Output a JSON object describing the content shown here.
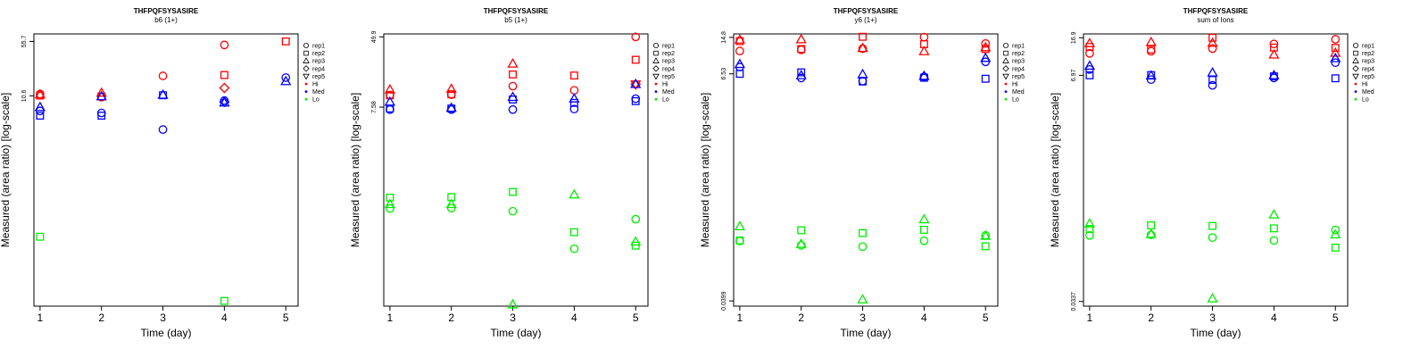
{
  "page": {
    "x_axis_label": "Time (day)",
    "y_axis_label": "Measured (area ratio) [log-scale]"
  },
  "legend": {
    "replicates": [
      {
        "label": "rep1",
        "shape": "circle"
      },
      {
        "label": "rep2",
        "shape": "square"
      },
      {
        "label": "rep3",
        "shape": "triangle-up"
      },
      {
        "label": "rep4",
        "shape": "diamond"
      },
      {
        "label": "rep5",
        "shape": "triangle-down"
      }
    ],
    "groups": [
      {
        "label": "Hi",
        "color": "#ff0000"
      },
      {
        "label": "Med",
        "color": "#0000ff"
      },
      {
        "label": "Lo",
        "color": "#00ee00"
      }
    ]
  },
  "chart_data": [
    {
      "type": "scatter",
      "title": "THFPQFSYSASIRE",
      "subtitle": "b6 (1+)",
      "xlabel": "Time (day)",
      "ylabel": "Measured (area ratio) [log-scale]",
      "log_y": true,
      "x": [
        1,
        2,
        3,
        4,
        5
      ],
      "xlim": [
        0.9,
        5.2
      ],
      "ylim": [
        0.0175,
        70
      ],
      "y_ticks": [
        {
          "value": 10.6,
          "label": "10.6"
        },
        {
          "value": 55.7,
          "label": "55.7"
        }
      ],
      "series": [
        {
          "group": "Hi",
          "rep": "rep1",
          "x": [
            1,
            2,
            3,
            4
          ],
          "y": [
            11.2,
            10.2,
            19.5,
            50
          ]
        },
        {
          "group": "Hi",
          "rep": "rep2",
          "x": [
            1,
            2,
            4,
            5
          ],
          "y": [
            10.7,
            10.4,
            20,
            55.7
          ]
        },
        {
          "group": "Hi",
          "rep": "rep3",
          "x": [
            1,
            2
          ],
          "y": [
            11.0,
            11.6
          ]
        },
        {
          "group": "Hi",
          "rep": "rep4",
          "x": [
            4
          ],
          "y": [
            13.5
          ]
        },
        {
          "group": "Med",
          "rep": "rep1",
          "x": [
            1,
            2,
            3,
            4,
            5
          ],
          "y": [
            6.7,
            6.3,
            3.8,
            9.2,
            18.5
          ]
        },
        {
          "group": "Med",
          "rep": "rep2",
          "x": [
            1,
            2,
            3
          ],
          "y": [
            5.8,
            5.8,
            10.8
          ]
        },
        {
          "group": "Med",
          "rep": "rep3",
          "x": [
            1,
            2,
            3,
            4,
            5
          ],
          "y": [
            7.5,
            10.4,
            10.9,
            8.6,
            16.5
          ]
        },
        {
          "group": "Med",
          "rep": "rep4",
          "x": [
            4
          ],
          "y": [
            8.8
          ]
        },
        {
          "group": "Lo",
          "rep": "rep2",
          "x": [
            1,
            4
          ],
          "y": [
            0.145,
            0.0205
          ]
        }
      ]
    },
    {
      "type": "scatter",
      "title": "THFPQFSYSASIRE",
      "subtitle": "b5 (1+)",
      "xlabel": "Time (day)",
      "ylabel": "Measured (area ratio) [log-scale]",
      "log_y": true,
      "x": [
        1,
        2,
        3,
        4,
        5
      ],
      "xlim": [
        0.9,
        5.2
      ],
      "ylim": [
        0.0365,
        54
      ],
      "y_ticks": [
        {
          "value": 7.58,
          "label": "7.58"
        },
        {
          "value": 49.9,
          "label": "49.9"
        }
      ],
      "series": [
        {
          "group": "Hi",
          "rep": "rep1",
          "x": [
            1,
            2,
            3,
            4,
            5
          ],
          "y": [
            10.5,
            10.6,
            13.3,
            11.9,
            49.9
          ]
        },
        {
          "group": "Hi",
          "rep": "rep2",
          "x": [
            1,
            2,
            3,
            4,
            5
          ],
          "y": [
            10.4,
            10.7,
            18.2,
            17.7,
            27
          ]
        },
        {
          "group": "Hi",
          "rep": "rep3",
          "x": [
            1,
            2,
            3
          ],
          "y": [
            12.1,
            12.3,
            24.2
          ]
        },
        {
          "group": "Hi",
          "rep": "rep4",
          "x": [
            5
          ],
          "y": [
            14
          ]
        },
        {
          "group": "Hi",
          "rep": "rep5",
          "x": [
            5
          ],
          "y": [
            14
          ]
        },
        {
          "group": "Med",
          "rep": "rep1",
          "x": [
            1,
            2,
            3,
            4,
            5
          ],
          "y": [
            7.1,
            7.1,
            7.1,
            7.2,
            9.5
          ]
        },
        {
          "group": "Med",
          "rep": "rep2",
          "x": [
            1,
            2,
            3,
            4,
            5
          ],
          "y": [
            7.3,
            7.3,
            9.3,
            8.5,
            8.9
          ]
        },
        {
          "group": "Med",
          "rep": "rep3",
          "x": [
            1,
            2,
            3,
            4,
            5
          ],
          "y": [
            8.7,
            7.4,
            9.9,
            9.5,
            14
          ]
        },
        {
          "group": "Lo",
          "rep": "rep1",
          "x": [
            1,
            2,
            3,
            4,
            5
          ],
          "y": [
            0.5,
            0.505,
            0.465,
            0.17,
            0.375
          ]
        },
        {
          "group": "Lo",
          "rep": "rep2",
          "x": [
            1,
            2,
            3,
            4,
            5
          ],
          "y": [
            0.67,
            0.68,
            0.78,
            0.265,
            0.185
          ]
        },
        {
          "group": "Lo",
          "rep": "rep3",
          "x": [
            1,
            2,
            3,
            4,
            5
          ],
          "y": [
            0.56,
            0.56,
            0.038,
            0.725,
            0.205
          ]
        }
      ]
    },
    {
      "type": "scatter",
      "title": "THFPQFSYSASIRE",
      "subtitle": "y6 (1+)",
      "xlabel": "Time (day)",
      "ylabel": "Measured (area ratio) [log-scale]",
      "log_y": true,
      "x": [
        1,
        2,
        3,
        4,
        5
      ],
      "xlim": [
        0.9,
        5.2
      ],
      "ylim": [
        0.0355,
        16
      ],
      "y_ticks": [
        {
          "value": 0.0399,
          "label": "0.0399"
        },
        {
          "value": 6.53,
          "label": "6.53"
        },
        {
          "value": 14.8,
          "label": "14.8"
        }
      ],
      "series": [
        {
          "group": "Hi",
          "rep": "rep1",
          "x": [
            1,
            2,
            3,
            4,
            5
          ],
          "y": [
            10.9,
            11.2,
            11.5,
            14.9,
            12.9
          ]
        },
        {
          "group": "Hi",
          "rep": "rep2",
          "x": [
            1,
            2,
            3,
            4,
            5
          ],
          "y": [
            13.6,
            11.4,
            15,
            12.7,
            11.4
          ]
        },
        {
          "group": "Hi",
          "rep": "rep3",
          "x": [
            1,
            2,
            3,
            4,
            5
          ],
          "y": [
            14,
            14.1,
            11.6,
            10.8,
            11.8
          ]
        },
        {
          "group": "Med",
          "rep": "rep1",
          "x": [
            1,
            2,
            3,
            4,
            5
          ],
          "y": [
            7.6,
            5.95,
            5.55,
            6.12,
            8.55
          ]
        },
        {
          "group": "Med",
          "rep": "rep2",
          "x": [
            1,
            2,
            3,
            4,
            5
          ],
          "y": [
            6.53,
            6.75,
            5.5,
            5.98,
            5.85
          ]
        },
        {
          "group": "Med",
          "rep": "rep3",
          "x": [
            1,
            2,
            3,
            4,
            5
          ],
          "y": [
            8.1,
            6.3,
            6.45,
            6.2,
            9.3
          ]
        },
        {
          "group": "Lo",
          "rep": "rep1",
          "x": [
            1,
            2,
            3,
            4,
            5
          ],
          "y": [
            0.153,
            0.139,
            0.135,
            0.154,
            0.174
          ]
        },
        {
          "group": "Lo",
          "rep": "rep2",
          "x": [
            1,
            2,
            3,
            4,
            5
          ],
          "y": [
            0.155,
            0.195,
            0.183,
            0.197,
            0.136
          ]
        },
        {
          "group": "Lo",
          "rep": "rep3",
          "x": [
            1,
            2,
            3,
            4,
            5
          ],
          "y": [
            0.212,
            0.143,
            0.041,
            0.248,
            0.171
          ]
        }
      ]
    },
    {
      "type": "scatter",
      "title": "THFPQFSYSASIRE",
      "subtitle": "sum of Ions",
      "xlabel": "Time (day)",
      "ylabel": "Measured (area ratio) [log-scale]",
      "log_y": true,
      "x": [
        1,
        2,
        3,
        4,
        5
      ],
      "xlim": [
        0.9,
        5.2
      ],
      "ylim": [
        0.0302,
        18.5
      ],
      "y_ticks": [
        {
          "value": 0.0337,
          "label": "0.0337"
        },
        {
          "value": 6.97,
          "label": "6.97"
        },
        {
          "value": 16.9,
          "label": "16.9"
        }
      ],
      "series": [
        {
          "group": "Hi",
          "rep": "rep1",
          "x": [
            1,
            2,
            3,
            4,
            5
          ],
          "y": [
            11.7,
            12.3,
            13.1,
            14.6,
            16.3
          ]
        },
        {
          "group": "Hi",
          "rep": "rep2",
          "x": [
            1,
            2,
            3,
            4,
            5
          ],
          "y": [
            13.6,
            12.8,
            16.9,
            13.4,
            13.3
          ]
        },
        {
          "group": "Hi",
          "rep": "rep3",
          "x": [
            1,
            2,
            3,
            4,
            5
          ],
          "y": [
            14.8,
            15.2,
            14.9,
            11.3,
            11.8
          ]
        },
        {
          "group": "Med",
          "rep": "rep1",
          "x": [
            1,
            2,
            3,
            4,
            5
          ],
          "y": [
            8.0,
            6.3,
            5.5,
            6.55,
            9.4
          ]
        },
        {
          "group": "Med",
          "rep": "rep2",
          "x": [
            1,
            2,
            3,
            4,
            5
          ],
          "y": [
            6.97,
            7.0,
            6.25,
            6.8,
            6.5
          ]
        },
        {
          "group": "Med",
          "rep": "rep3",
          "x": [
            1,
            2,
            3,
            4,
            5
          ],
          "y": [
            8.7,
            6.9,
            7.4,
            6.95,
            10.4
          ]
        },
        {
          "group": "Lo",
          "rep": "rep1",
          "x": [
            1,
            2,
            3,
            4,
            5
          ],
          "y": [
            0.16,
            0.162,
            0.152,
            0.142,
            0.182
          ]
        },
        {
          "group": "Lo",
          "rep": "rep2",
          "x": [
            1,
            2,
            3,
            4,
            5
          ],
          "y": [
            0.186,
            0.203,
            0.2,
            0.189,
            0.12
          ]
        },
        {
          "group": "Lo",
          "rep": "rep3",
          "x": [
            1,
            2,
            3,
            4,
            5
          ],
          "y": [
            0.211,
            0.165,
            0.036,
            0.26,
            0.163
          ]
        }
      ]
    }
  ]
}
